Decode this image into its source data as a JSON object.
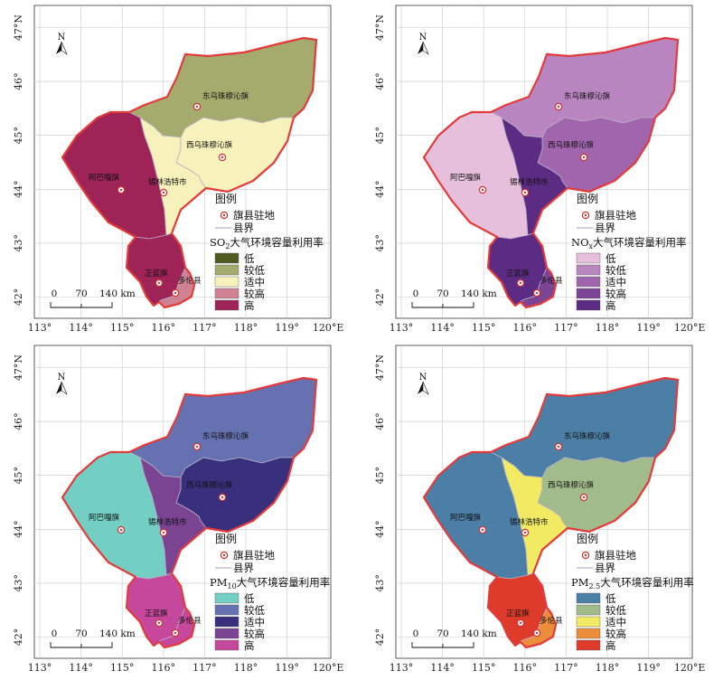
{
  "maps": [
    {
      "id": "so2",
      "title_main": "SO",
      "title_sub": "2",
      "title_rest": "大气环境容量利用率",
      "levels": [
        "低",
        "较低",
        "适中",
        "较高",
        "高"
      ],
      "colors": [
        "#4e5a22",
        "#a4ab6d",
        "#f7f1bb",
        "#cf8291",
        "#9e2458"
      ],
      "regions": {
        "abag": 4,
        "xilin": 2,
        "dongwu": 1,
        "xiwu": 2,
        "zhenglan": 4,
        "duolun": 3
      }
    },
    {
      "id": "nox",
      "title_main": "NO",
      "title_sub": "x",
      "title_rest": "大气环境容量利用率",
      "levels": [
        "低",
        "较低",
        "适中",
        "较高",
        "高"
      ],
      "colors": [
        "#e6bfdc",
        "#b885c0",
        "#a065ad",
        "#7c4494",
        "#5c2c84"
      ],
      "regions": {
        "abag": 0,
        "xilin": 4,
        "dongwu": 1,
        "xiwu": 2,
        "zhenglan": 4,
        "duolun": 3
      }
    },
    {
      "id": "pm10",
      "title_main": "PM",
      "title_sub": "10",
      "title_rest": "大气环境容量利用率",
      "levels": [
        "低",
        "较低",
        "适中",
        "较高",
        "高"
      ],
      "colors": [
        "#73cfc3",
        "#6571b0",
        "#39307d",
        "#7a4493",
        "#c5489d"
      ],
      "regions": {
        "abag": 0,
        "xilin": 3,
        "dongwu": 1,
        "xiwu": 2,
        "zhenglan": 4,
        "duolun": 4
      }
    },
    {
      "id": "pm25",
      "title_main": "PM",
      "title_sub": "2.5",
      "title_rest": "大气环境容量利用率",
      "levels": [
        "低",
        "较低",
        "适中",
        "较高",
        "高"
      ],
      "colors": [
        "#4c7fa6",
        "#a1bb8b",
        "#f2ea62",
        "#ec8d3b",
        "#de3b2a"
      ],
      "regions": {
        "abag": 0,
        "xilin": 2,
        "dongwu": 0,
        "xiwu": 1,
        "zhenglan": 4,
        "duolun": 3
      }
    }
  ],
  "legend": {
    "title": "图例",
    "seat_label": "旗县驻地",
    "boundary_label": "县界"
  },
  "place_names": {
    "dongwu": "东乌珠穆沁旗",
    "xiwu": "西乌珠穆沁旗",
    "abag": "阿巴嘎旗",
    "xilin": "锡林浩特市",
    "zhenglan": "正蓝旗",
    "duolun": "多伦县"
  },
  "lon_ticks": [
    "113°",
    "114°",
    "115°",
    "116°",
    "117°",
    "118°",
    "119°",
    "120°E"
  ],
  "lat_ticks": [
    "42°",
    "43°",
    "44°",
    "45°",
    "46°",
    "47°N"
  ],
  "scalebar": [
    "0",
    "70",
    "140 km"
  ],
  "north_label": "N"
}
